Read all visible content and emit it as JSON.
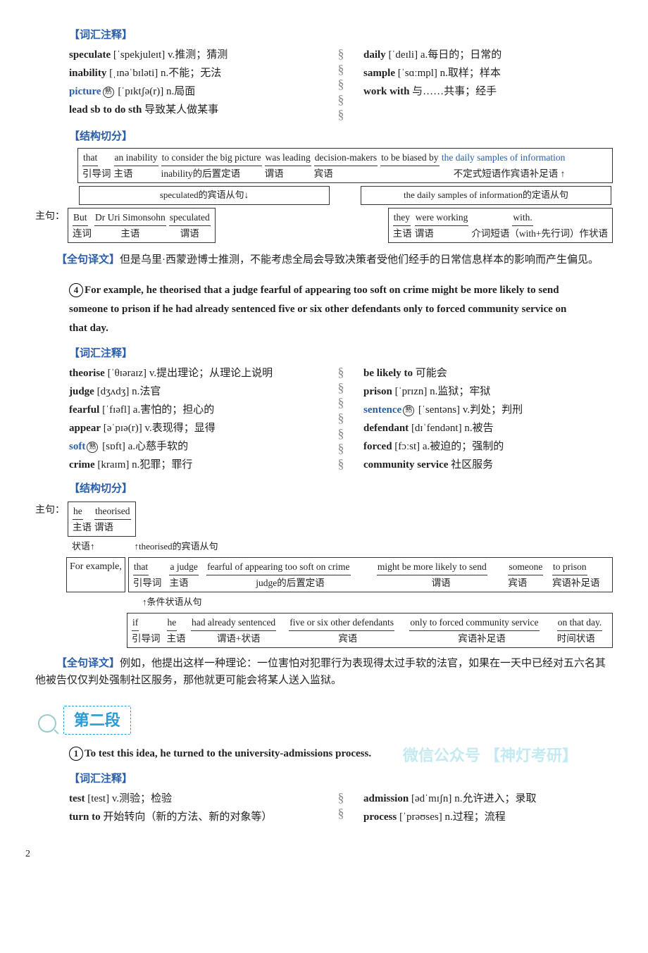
{
  "colors": {
    "blue": "#2a5eaa",
    "cyan": "#2a9bd6",
    "text": "#222"
  },
  "block1": {
    "vocab_title": "【词汇注释】",
    "left": [
      {
        "head": "speculate",
        "pron": "[ˈspekjuleɪt]",
        "def": "v.推测；猜测"
      },
      {
        "head": "inability",
        "pron": "[ˌɪnəˈbɪləti]",
        "def": "n.不能；无法"
      },
      {
        "head_html": "picture",
        "circled": "熟",
        "pron": "[ˈpɪktʃə(r)]",
        "def": "n.局面",
        "blue": true
      },
      {
        "head": "lead sb to do sth",
        "pron": "",
        "def": "导致某人做某事"
      }
    ],
    "right": [
      {
        "head": "daily",
        "pron": "[ˈdeɪli]",
        "def": "a.每日的；日常的"
      },
      {
        "head": "sample",
        "pron": "[ˈsɑːmpl]",
        "def": "n.取样；样本"
      },
      {
        "head": "work with",
        "pron": "",
        "def": "与……共事；经手"
      }
    ],
    "struct_title": "【结构切分】",
    "diagram": {
      "main_label": "主句：",
      "row1": {
        "cells": [
          "that",
          "an inability",
          "to consider the big picture",
          "was leading",
          "decision-makers",
          "to be biased by"
        ],
        "blue_tail": "the daily samples of information",
        "labels": [
          "引导词",
          "主语",
          "inability的后置定语",
          "谓语",
          "宾语",
          "不定式短语作宾语补足语"
        ]
      },
      "mid_left": "speculated的宾语从句↓",
      "mid_right": "the daily samples of information的定语从句",
      "row2": {
        "left_cells": [
          "But",
          "Dr Uri Simonsohn",
          "speculated"
        ],
        "left_labels": [
          "连词",
          "主语",
          "谓语"
        ],
        "right_cells": [
          "they",
          "were working",
          "with."
        ],
        "right_labels": [
          "主语",
          "谓语",
          "介词短语（with+先行词）作状语"
        ]
      }
    },
    "translation_label": "【全句译文】",
    "translation": "但是乌里·西蒙逊博士推测，不能考虑全局会导致决策者受他们经手的日常信息样本的影响而产生偏见。"
  },
  "block2": {
    "num": "4",
    "sentence": "For example, he theorised that a judge fearful of appearing too soft on crime might be more likely to send someone to prison if he had already sentenced five or six other defendants only to forced community service on that day.",
    "vocab_title": "【词汇注释】",
    "left": [
      {
        "head": "theorise",
        "pron": "[ˈθɪəraɪz]",
        "def": "v.提出理论；从理论上说明"
      },
      {
        "head": "judge",
        "pron": "[dʒʌdʒ]",
        "def": "n.法官"
      },
      {
        "head": "fearful",
        "pron": "[ˈfɪəfl]",
        "def": "a.害怕的；担心的"
      },
      {
        "head": "appear",
        "pron": "[əˈpɪə(r)]",
        "def": "v.表现得；显得"
      },
      {
        "head_html": "soft",
        "circled": "熟",
        "pron": "[sɒft]",
        "def": "a.心慈手软的",
        "blue": true
      },
      {
        "head": "crime",
        "pron": "[kraɪm]",
        "def": "n.犯罪；罪行"
      }
    ],
    "right": [
      {
        "head": "be likely to",
        "pron": "",
        "def": "可能会"
      },
      {
        "head": "prison",
        "pron": "[ˈprɪzn]",
        "def": "n.监狱；牢狱"
      },
      {
        "head_html": "sentence",
        "circled": "熟",
        "pron": "[ˈsentəns]",
        "def": "v.判处；判刑",
        "blue": true
      },
      {
        "head": "defendant",
        "pron": "[dɪˈfendənt]",
        "def": "n.被告"
      },
      {
        "head": "forced",
        "pron": "[fɔːst]",
        "def": "a.被迫的；强制的"
      },
      {
        "head": "community service",
        "pron": "",
        "def": "社区服务"
      }
    ],
    "struct_title": "【结构切分】",
    "diagram": {
      "main_label": "主句：",
      "top": {
        "cells": [
          "he",
          "theorised"
        ],
        "labels": [
          "主语",
          "谓语"
        ]
      },
      "adv_label": "状语",
      "adv_box": "For example,",
      "clause_label": "theorised的宾语从句",
      "row1": {
        "cells": [
          "that",
          "a judge",
          "fearful of appearing too soft on crime",
          "might be more likely to send",
          "someone",
          "to prison"
        ],
        "labels": [
          "引导词",
          "主语",
          "judge的后置定语",
          "谓语",
          "宾语",
          "宾语补足语"
        ]
      },
      "cond_label": "条件状语从句",
      "row2": {
        "cells": [
          "if",
          "he",
          "had already sentenced",
          "five or six other defendants",
          "only to forced community service",
          "on that day."
        ],
        "labels": [
          "引导词",
          "主语",
          "谓语+状语",
          "宾语",
          "宾语补足语",
          "时间状语"
        ]
      }
    },
    "translation_label": "【全句译文】",
    "translation": "例如，他提出这样一种理论：一位害怕对犯罪行为表现得太过手软的法官，如果在一天中已经对五六名其他被告仅仅判处强制社区服务，那他就更可能会将某人送入监狱。"
  },
  "para2": {
    "header": "第二段",
    "num": "1",
    "sentence": "To test this idea, he turned to the university-admissions process.",
    "watermark": "微信公众号 【神灯考研】",
    "vocab_title": "【词汇注释】",
    "left": [
      {
        "head": "test",
        "pron": "[test]",
        "def": "v.测验；检验"
      },
      {
        "head": "turn to",
        "pron": "",
        "def": "开始转向（新的方法、新的对象等）"
      }
    ],
    "right": [
      {
        "head": "admission",
        "pron": "[ədˈmɪʃn]",
        "def": "n.允许进入；录取"
      },
      {
        "head": "process",
        "pron": "[ˈprəʊses]",
        "def": "n.过程；流程"
      }
    ]
  },
  "pagenum": "2"
}
